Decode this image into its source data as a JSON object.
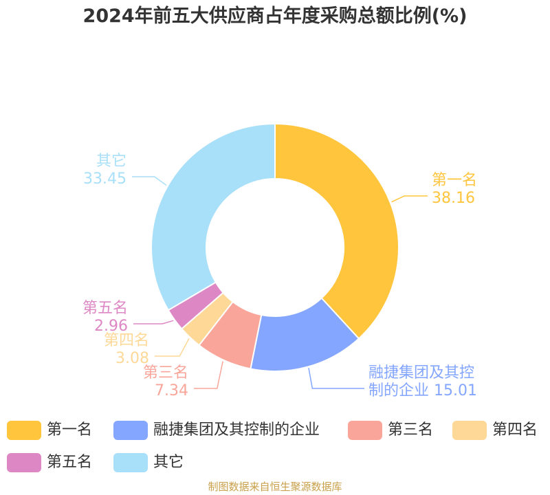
{
  "chart_data": {
    "type": "pie",
    "title": "2024年前五大供应商占年度采购总额比例(%)",
    "slices": [
      {
        "name": "第一名",
        "label_lines": [
          "第一名",
          "38.16"
        ],
        "value": 38.16,
        "color": "#ffc53d"
      },
      {
        "name": "融捷集团及其控制的企业",
        "label_lines": [
          "融捷集团及其控",
          "制的企业 15.01"
        ],
        "value": 15.01,
        "color": "#84a6ff"
      },
      {
        "name": "第三名",
        "label_lines": [
          "第三名",
          "7.34"
        ],
        "value": 7.34,
        "color": "#f9a59a"
      },
      {
        "name": "第四名",
        "label_lines": [
          "第四名",
          "3.08"
        ],
        "value": 3.08,
        "color": "#fed897"
      },
      {
        "name": "第五名",
        "label_lines": [
          "第五名",
          "2.96"
        ],
        "value": 2.96,
        "color": "#dd88c4"
      },
      {
        "name": "其它",
        "label_lines": [
          "其它",
          "33.45"
        ],
        "value": 33.45,
        "color": "#a8dff9"
      }
    ],
    "legend_position": "bottom"
  },
  "source": "制图数据来自恒生聚源数据库"
}
